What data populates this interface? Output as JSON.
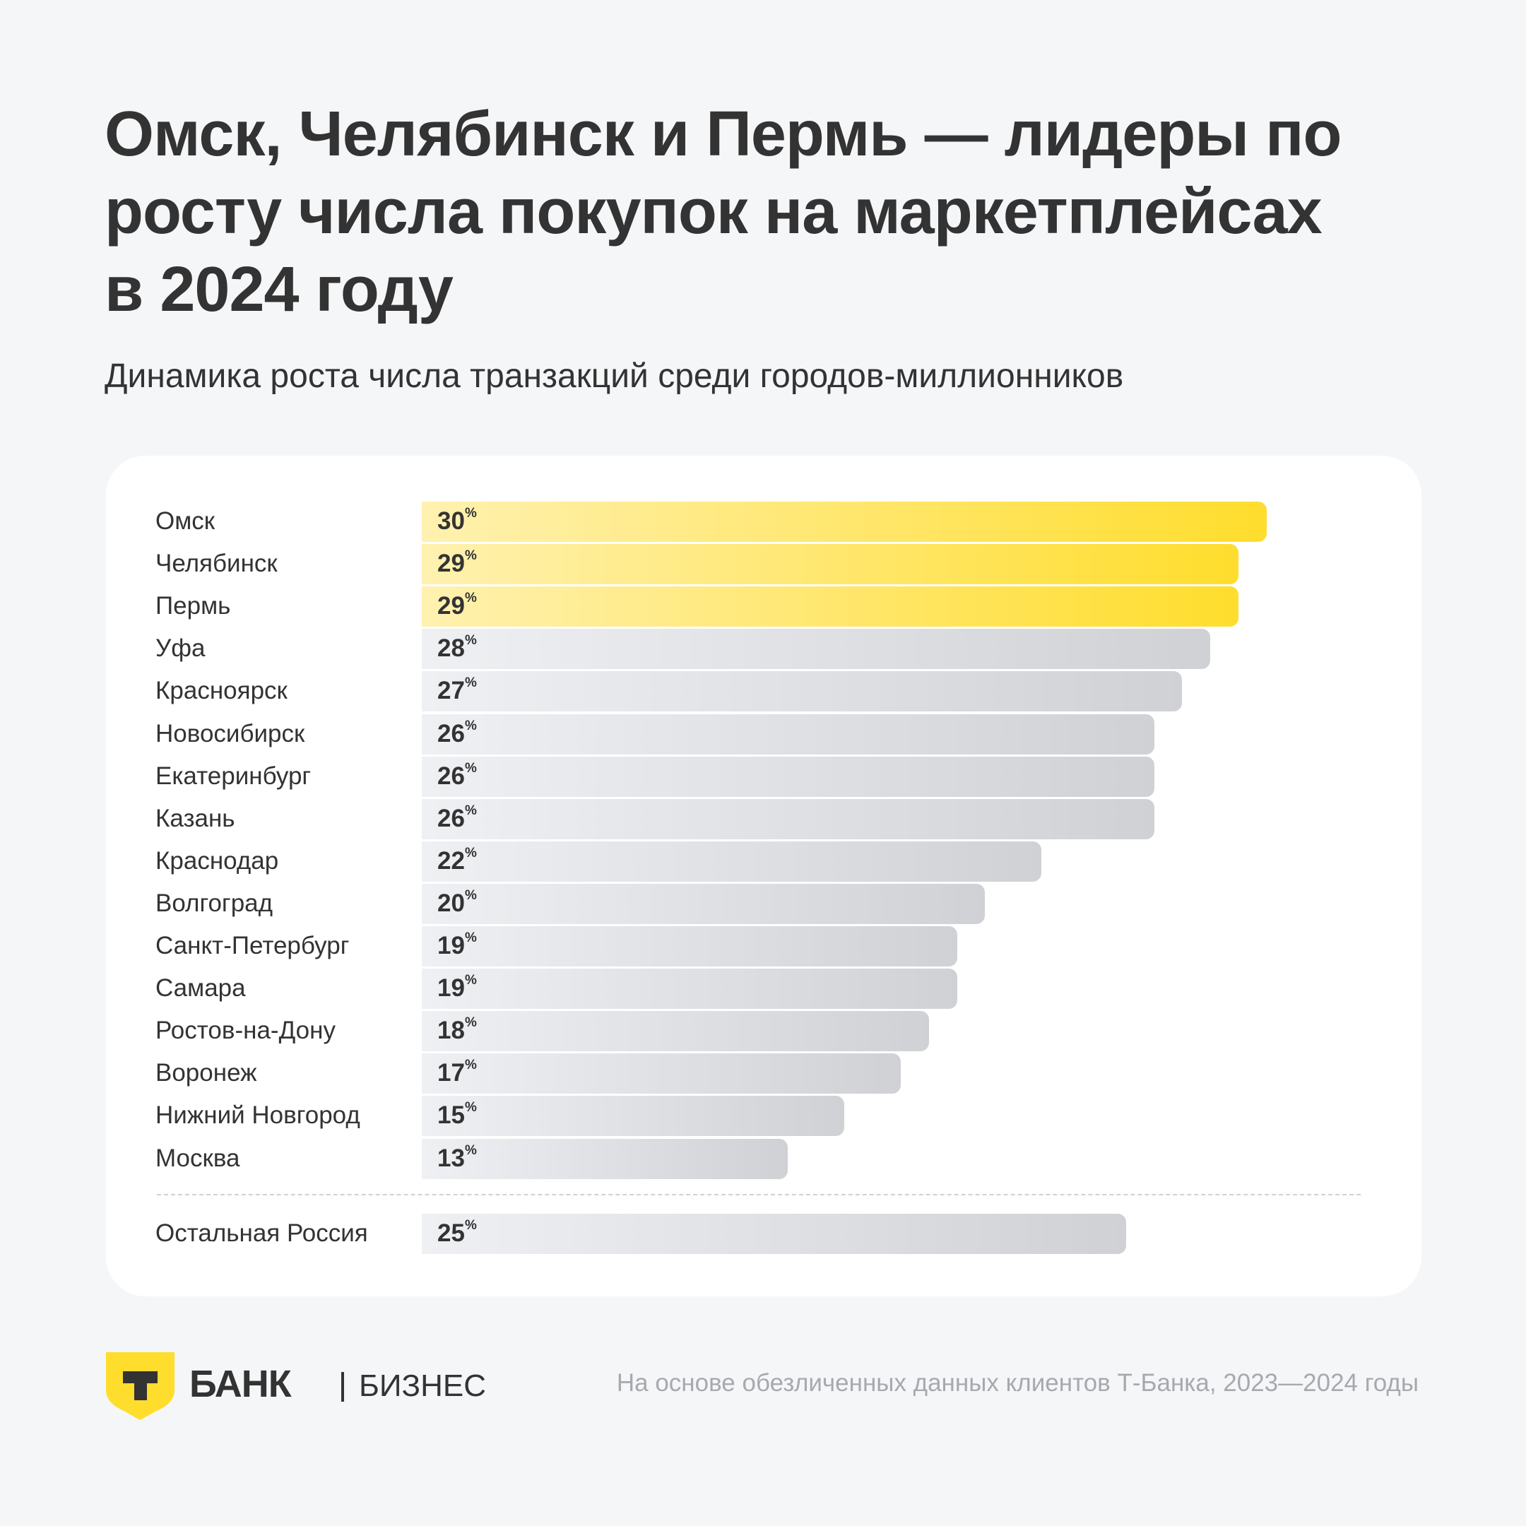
{
  "title": "Омск, Челябинск и Пермь — лидеры по росту числа покупок на маркетплейсах в 2024 году",
  "subtitle": "Динамика роста числа транзакций среди городов-миллионников",
  "chart_data": {
    "type": "bar",
    "orientation": "horizontal",
    "title": "Омск, Челябинск и Пермь — лидеры по росту числа покупок на маркетплейсах в 2024 году",
    "subtitle": "Динамика роста числа транзакций среди городов-миллионников",
    "unit": "%",
    "categories": [
      "Омск",
      "Челябинск",
      "Пермь",
      "Уфа",
      "Красноярск",
      "Новосибирск",
      "Екатеринбург",
      "Казань",
      "Краснодар",
      "Волгоград",
      "Санкт-Петербург",
      "Самара",
      "Ростов-на-Дону",
      "Воронеж",
      "Нижний Новгород",
      "Москва"
    ],
    "values": [
      30,
      29,
      29,
      28,
      27,
      26,
      26,
      26,
      22,
      20,
      19,
      19,
      18,
      17,
      15,
      13
    ],
    "highlighted": [
      "Омск",
      "Челябинск",
      "Пермь"
    ],
    "reference": {
      "label": "Остальная Россия",
      "value": 25
    },
    "highlight_color": "#ffdd2d",
    "bar_color": "#d4d6da"
  },
  "logo": {
    "brand": "БАНК",
    "product": "БИЗНЕС",
    "mark": "Т"
  },
  "footnote": "На основе обезличенных данных клиентов Т-Банка, 2023—2024 годы"
}
